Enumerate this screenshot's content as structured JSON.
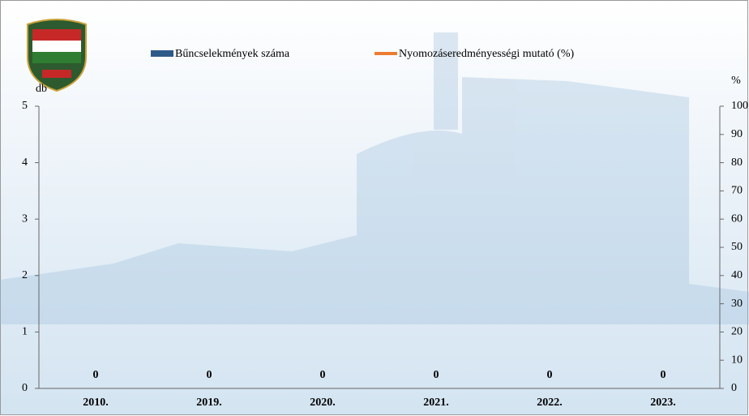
{
  "chart_data": {
    "type": "bar",
    "categories": [
      "2010.",
      "2019.",
      "2020.",
      "2021.",
      "2022.",
      "2023."
    ],
    "series": [
      {
        "name": "Bűncselekmények száma",
        "color": "#2e5a88",
        "values": [
          0,
          0,
          0,
          0,
          0,
          0
        ],
        "value_labels": [
          "0",
          "0",
          "0",
          "0",
          "0",
          "0"
        ]
      },
      {
        "name": "Nyomozáseredményességi mutató (%)",
        "color": "#ed7d31",
        "type": "line",
        "axis": "y2",
        "values": [
          null,
          null,
          null,
          null,
          null,
          null
        ]
      }
    ],
    "y_label": "db",
    "y2_label": "%",
    "ylim": [
      0,
      5
    ],
    "yticks": [
      0,
      1,
      2,
      3,
      4,
      5
    ],
    "y2lim": [
      0,
      100
    ],
    "y2ticks": [
      0,
      10,
      20,
      30,
      40,
      50,
      60,
      70,
      80,
      90,
      100
    ]
  }
}
